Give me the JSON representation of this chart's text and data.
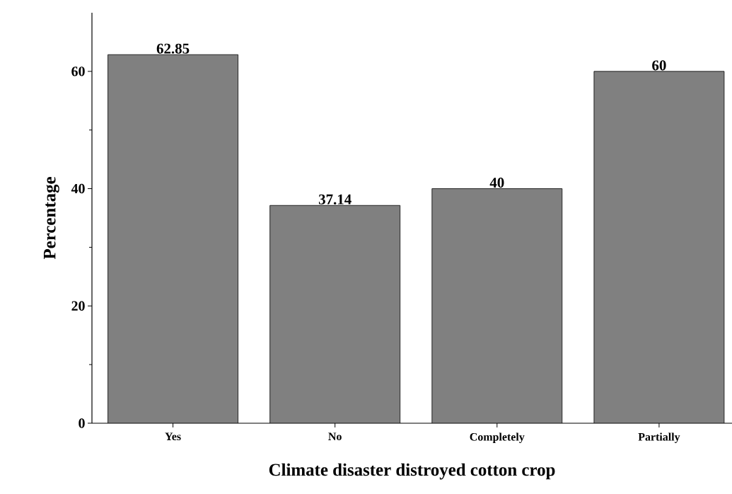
{
  "chart_data": {
    "type": "bar",
    "xlabel": "Climate disaster distroyed cotton crop",
    "ylabel": "Percentage",
    "categories": [
      "Yes",
      "No",
      "Completely",
      "Partially"
    ],
    "values": [
      62.85,
      37.14,
      40,
      60
    ],
    "color": "#808080",
    "ylim": [
      0,
      70
    ],
    "yticks": [
      0,
      20,
      40,
      60
    ],
    "data_labels": true
  }
}
